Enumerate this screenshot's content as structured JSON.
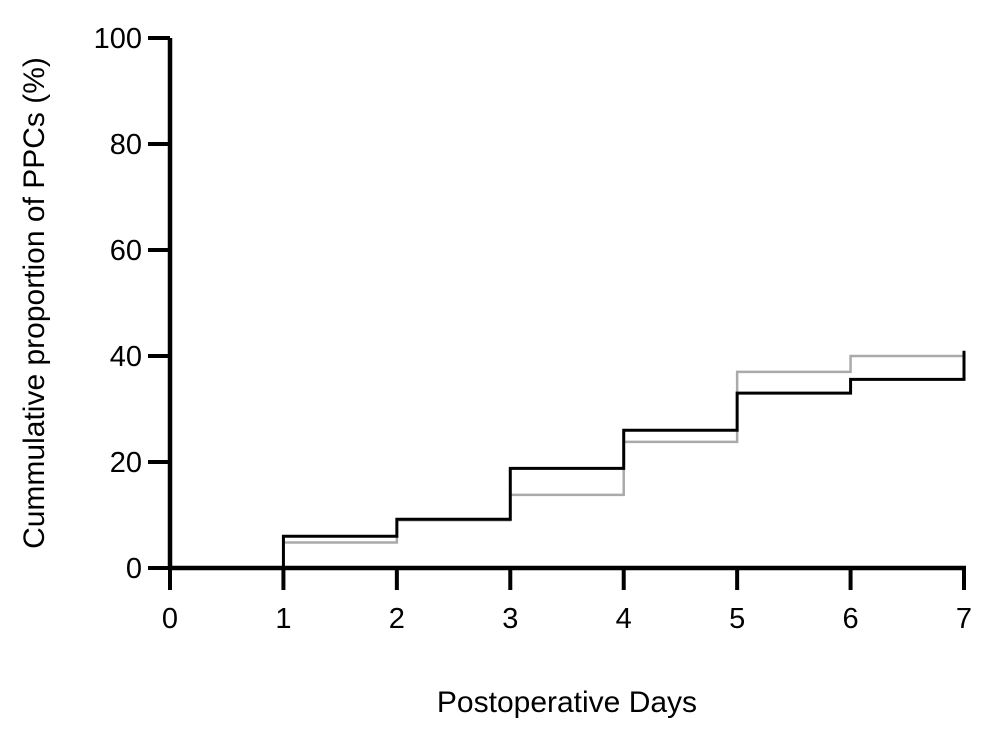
{
  "chart_data": {
    "type": "line",
    "subtype": "step",
    "title": "",
    "xlabel": "Postoperative Days",
    "ylabel": "Cummulative proportion of PPCs  (%)",
    "xlim": [
      0,
      7
    ],
    "ylim": [
      0,
      100
    ],
    "xticks": [
      "0",
      "1",
      "2",
      "3",
      "4",
      "5",
      "6",
      "7"
    ],
    "yticks": [
      "0",
      "20",
      "40",
      "60",
      "80",
      "100"
    ],
    "grid": false,
    "legend": "none",
    "series": [
      {
        "color": "#aaaaaa",
        "x": [
          1,
          2,
          3,
          4,
          5,
          6,
          7
        ],
        "y": [
          4.8,
          9.0,
          13.8,
          23.8,
          37.0,
          40.0,
          40.0
        ]
      },
      {
        "color": "#000000",
        "x": [
          1,
          2,
          3,
          4,
          5,
          6,
          7
        ],
        "y": [
          6.0,
          9.2,
          18.8,
          26.0,
          33.0,
          35.6,
          41.0
        ]
      }
    ]
  }
}
